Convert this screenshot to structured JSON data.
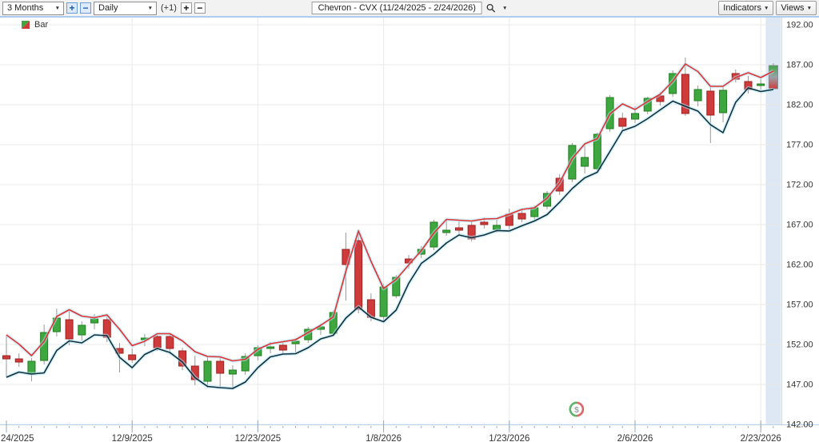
{
  "toolbar": {
    "range_select": {
      "value": "3 Months"
    },
    "zoom_in_label": "+",
    "zoom_out_label": "−",
    "period_select": {
      "value": "Daily"
    },
    "offset_label": "(+1)",
    "bar_plus_label": "+",
    "bar_minus_label": "−",
    "symbol_box": {
      "value": "Chevron - CVX (11/24/2025 - 2/24/2026)"
    },
    "indicators_button": "Indicators",
    "views_button": "Views"
  },
  "legend": {
    "label": "Bar"
  },
  "watermark": {
    "symbol": "$"
  },
  "chart_data": {
    "type": "candlestick",
    "title": "Chevron - CVX (11/24/2025 - 2/24/2026)",
    "symbol": "CVX",
    "grid": true,
    "ylim": [
      142,
      192.9
    ],
    "dates": [
      "11/24",
      "11/25",
      "11/26",
      "11/28",
      "12/1",
      "12/2",
      "12/3",
      "12/4",
      "12/5",
      "12/8",
      "12/9",
      "12/10",
      "12/11",
      "12/12",
      "12/15",
      "12/16",
      "12/17",
      "12/18",
      "12/19",
      "12/22",
      "12/23",
      "12/24",
      "12/26",
      "12/29",
      "12/30",
      "12/31",
      "1/2",
      "1/5",
      "1/6",
      "1/7",
      "1/8",
      "1/9",
      "1/12",
      "1/13",
      "1/14",
      "1/15",
      "1/16",
      "1/20",
      "1/21",
      "1/22",
      "1/23",
      "1/26",
      "1/27",
      "1/28",
      "1/29",
      "1/30",
      "2/2",
      "2/3",
      "2/4",
      "2/5",
      "2/6",
      "2/9",
      "2/10",
      "2/11",
      "2/12",
      "2/13",
      "2/17",
      "2/18",
      "2/19",
      "2/20",
      "2/23",
      "2/24"
    ],
    "ohlc": [
      [
        150.6,
        153.2,
        147.9,
        150.2
      ],
      [
        150.2,
        150.9,
        149.2,
        149.8
      ],
      [
        148.3,
        150.3,
        147.4,
        149.9
      ],
      [
        150.0,
        154.5,
        149.5,
        153.5
      ],
      [
        153.6,
        156.5,
        153.0,
        155.3
      ],
      [
        155.1,
        156.2,
        151.9,
        152.7
      ],
      [
        153.2,
        154.9,
        152.5,
        154.4
      ],
      [
        154.7,
        155.8,
        153.9,
        155.2
      ],
      [
        155.1,
        155.6,
        152.3,
        152.9
      ],
      [
        151.5,
        152.2,
        148.5,
        150.9
      ],
      [
        150.7,
        151.5,
        149.7,
        150.1
      ],
      [
        152.6,
        153.3,
        151.8,
        152.8
      ],
      [
        153.0,
        153.4,
        151.2,
        151.6
      ],
      [
        153.0,
        153.3,
        150.8,
        151.5
      ],
      [
        151.2,
        151.6,
        148.8,
        149.3
      ],
      [
        149.3,
        150.6,
        146.9,
        147.6
      ],
      [
        147.4,
        150.4,
        146.6,
        149.9
      ],
      [
        149.9,
        150.5,
        146.6,
        148.4
      ],
      [
        148.3,
        149.4,
        146.4,
        148.8
      ],
      [
        148.7,
        150.9,
        148.2,
        150.5
      ],
      [
        150.6,
        151.9,
        150.0,
        151.6
      ],
      [
        151.5,
        152.3,
        150.9,
        151.7
      ],
      [
        151.9,
        152.4,
        150.7,
        151.3
      ],
      [
        152.1,
        152.8,
        151.0,
        152.4
      ],
      [
        152.6,
        154.2,
        152.2,
        153.9
      ],
      [
        153.9,
        154.6,
        153.2,
        154.2
      ],
      [
        153.4,
        156.3,
        153.1,
        156.0
      ],
      [
        163.9,
        166.0,
        157.5,
        162.0
      ],
      [
        165.0,
        166.4,
        155.9,
        156.4
      ],
      [
        157.6,
        158.4,
        154.9,
        155.4
      ],
      [
        155.5,
        159.6,
        154.8,
        159.2
      ],
      [
        158.1,
        160.7,
        157.8,
        160.4
      ],
      [
        162.7,
        163.2,
        161.5,
        162.2
      ],
      [
        163.3,
        164.3,
        162.8,
        163.9
      ],
      [
        164.2,
        167.6,
        163.8,
        167.3
      ],
      [
        166.0,
        167.7,
        165.6,
        166.3
      ],
      [
        166.6,
        167.4,
        165.8,
        166.3
      ],
      [
        166.9,
        167.5,
        164.9,
        165.2
      ],
      [
        167.3,
        167.9,
        166.5,
        167.0
      ],
      [
        166.4,
        167.6,
        166.0,
        166.9
      ],
      [
        168.3,
        169.0,
        166.4,
        166.9
      ],
      [
        168.4,
        168.8,
        167.3,
        167.7
      ],
      [
        168.0,
        169.4,
        167.6,
        169.1
      ],
      [
        169.3,
        171.2,
        168.9,
        170.9
      ],
      [
        172.8,
        173.3,
        170.7,
        171.2
      ],
      [
        172.7,
        177.2,
        172.3,
        176.9
      ],
      [
        174.3,
        177.0,
        173.4,
        175.4
      ],
      [
        174.0,
        178.5,
        173.7,
        178.3
      ],
      [
        179.0,
        183.2,
        178.6,
        182.9
      ],
      [
        180.3,
        181.0,
        178.9,
        179.3
      ],
      [
        180.2,
        181.8,
        179.7,
        180.9
      ],
      [
        181.2,
        183.0,
        180.8,
        182.8
      ],
      [
        183.1,
        183.6,
        181.9,
        182.4
      ],
      [
        183.4,
        186.3,
        183.0,
        185.9
      ],
      [
        185.8,
        187.9,
        180.6,
        180.9
      ],
      [
        182.5,
        184.4,
        181.8,
        183.9
      ],
      [
        183.7,
        184.2,
        177.2,
        180.7
      ],
      [
        181.0,
        184.4,
        179.8,
        183.8
      ],
      [
        185.9,
        186.4,
        184.8,
        185.2
      ],
      [
        184.9,
        185.6,
        183.4,
        183.9
      ],
      [
        184.4,
        185.2,
        183.9,
        184.6
      ],
      [
        184.0,
        187.2,
        183.9,
        186.9
      ]
    ],
    "x_ticks": [
      {
        "index": 0,
        "label": "24/2025"
      },
      {
        "index": 10,
        "label": "12/9/2025"
      },
      {
        "index": 20,
        "label": "12/23/2025"
      },
      {
        "index": 30,
        "label": "1/8/2026"
      },
      {
        "index": 40,
        "label": "1/23/2026"
      },
      {
        "index": 50,
        "label": "2/6/2026"
      },
      {
        "index": 60,
        "label": "2/23/2026"
      }
    ],
    "y_ticks": [
      {
        "value": 192,
        "label": "192.00"
      },
      {
        "value": 187,
        "label": "187.00"
      },
      {
        "value": 182,
        "label": "182.00"
      },
      {
        "value": 177,
        "label": "177.00"
      },
      {
        "value": 172,
        "label": "172.00"
      },
      {
        "value": 167,
        "label": "167.00"
      },
      {
        "value": 162,
        "label": "162.00"
      },
      {
        "value": 157,
        "label": "157.00"
      },
      {
        "value": 152,
        "label": "152.00"
      },
      {
        "value": 147,
        "label": "147.00"
      },
      {
        "value": 142,
        "label": "142.00"
      }
    ],
    "overlays": [
      {
        "name": "smoothed-high-line",
        "source": "high",
        "period": 2,
        "color": "#e03232"
      },
      {
        "name": "smoothed-low-line",
        "source": "low",
        "period": 2,
        "color": "#12303a"
      }
    ],
    "colors": {
      "up": "#3fa73f",
      "up_border": "#1e7d1e",
      "down": "#cf3b3b",
      "down_border": "#9c2020",
      "wick": "#999999",
      "grid": "#e9e9e9",
      "axis_text": "#333333",
      "axis_line": "#b9d1e8",
      "tick": "#8fa8c0",
      "highlight_band": "#dde8f4",
      "glow": "#aee4f5",
      "watermark_green": "#5cb36a",
      "watermark_red": "#e06666",
      "watermark_text": "#9aa0a6"
    },
    "last_bar_gradient": true,
    "legend_position": "top-left"
  }
}
